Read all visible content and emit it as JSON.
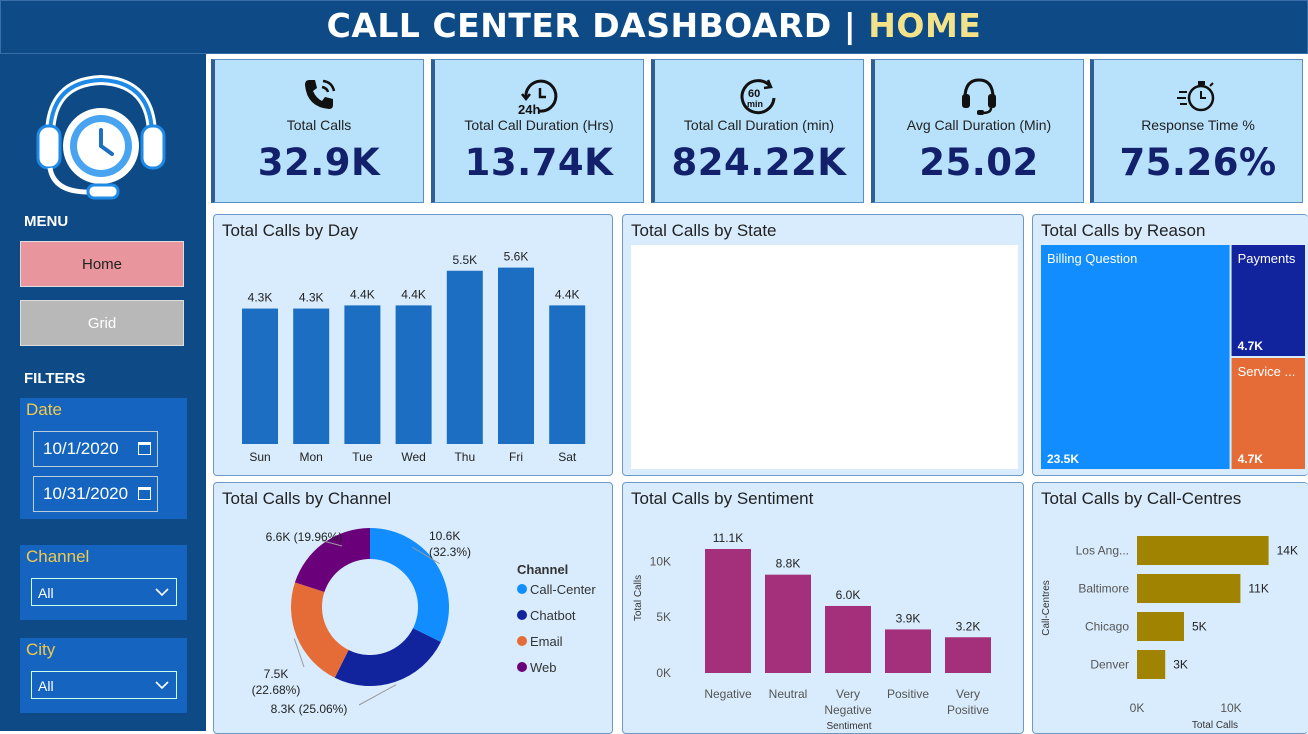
{
  "header": {
    "title": "CALL CENTER DASHBOARD | ",
    "page": "HOME"
  },
  "sidebar": {
    "logo_icon": "headset-clock-icon",
    "menu_label": "MENU",
    "nav": {
      "home": "Home",
      "grid": "Grid"
    },
    "filters_label": "FILTERS",
    "date": {
      "label": "Date",
      "start": "10/1/2020",
      "end": "10/31/2020"
    },
    "channel": {
      "label": "Channel",
      "value": "All"
    },
    "city": {
      "label": "City",
      "value": "All"
    }
  },
  "kpis": [
    {
      "icon": "phone-icon",
      "label": "Total Calls",
      "value": "32.9K"
    },
    {
      "icon": "clock-24h-icon",
      "label": "Total Call Duration (Hrs)",
      "value": "13.74K"
    },
    {
      "icon": "timer-60min-icon",
      "label": "Total Call Duration (min)",
      "value": "824.22K"
    },
    {
      "icon": "headset-icon",
      "label": "Avg Call Duration (Min)",
      "value": "25.02"
    },
    {
      "icon": "stopwatch-icon",
      "label": "Response Time %",
      "value": "75.26%"
    }
  ],
  "colors": {
    "bar_blue": "#1b6ec2",
    "donut_callcenter": "#118dff",
    "donut_chatbot": "#12239e",
    "donut_email": "#e66c37",
    "donut_web": "#6b007b",
    "sentiment": "#a4307b",
    "callcentre": "#a08300"
  },
  "chart_data": [
    {
      "id": "day",
      "type": "bar",
      "title": "Total Calls by Day",
      "categories": [
        "Sun",
        "Mon",
        "Tue",
        "Wed",
        "Thu",
        "Fri",
        "Sat"
      ],
      "values": [
        4.3,
        4.3,
        4.4,
        4.4,
        5.5,
        5.6,
        4.4
      ],
      "labels": [
        "4.3K",
        "4.3K",
        "4.4K",
        "4.4K",
        "5.5K",
        "5.6K",
        "4.4K"
      ],
      "ylim": [
        0,
        6
      ]
    },
    {
      "id": "state",
      "type": "map",
      "title": "Total Calls by State"
    },
    {
      "id": "reason",
      "type": "treemap",
      "title": "Total Calls by Reason",
      "categories": [
        "Billing Question",
        "Payments",
        "Service ..."
      ],
      "values": [
        23.5,
        4.7,
        4.7
      ],
      "labels": [
        "23.5K",
        "4.7K",
        "4.7K"
      ]
    },
    {
      "id": "channel",
      "type": "pie",
      "title": "Total Calls by Channel",
      "legend_title": "Channel",
      "categories": [
        "Call-Center",
        "Chatbot",
        "Email",
        "Web"
      ],
      "values": [
        32.3,
        25.06,
        22.68,
        19.96
      ],
      "labels": [
        [
          "10.6K",
          "(32.3%)"
        ],
        [
          "8.3K (25.06%)"
        ],
        [
          "7.5K",
          "(22.68%)"
        ],
        [
          "6.6K (19.96%)"
        ]
      ]
    },
    {
      "id": "sentiment",
      "type": "bar",
      "title": "Total Calls by Sentiment",
      "categories": [
        [
          "Negative"
        ],
        [
          "Neutral"
        ],
        [
          "Very",
          "Negative"
        ],
        [
          "Positive"
        ],
        [
          "Very",
          "Positive"
        ]
      ],
      "values": [
        11.1,
        8.8,
        6.0,
        3.9,
        3.2
      ],
      "labels": [
        "11.1K",
        "8.8K",
        "6.0K",
        "3.9K",
        "3.2K"
      ],
      "xlabel": "Sentiment",
      "ylabel": "Total Calls",
      "ylim": [
        0,
        12
      ],
      "yticks": [
        "0K",
        "5K",
        "10K"
      ]
    },
    {
      "id": "centres",
      "type": "bar",
      "orientation": "horizontal",
      "title": "Total Calls by Call-Centres",
      "categories": [
        "Los Ang...",
        "Baltimore",
        "Chicago",
        "Denver"
      ],
      "values": [
        14,
        11,
        5,
        3
      ],
      "labels": [
        "14K",
        "11K",
        "5K",
        "3K"
      ],
      "xlabel": "Total Calls",
      "ylabel": "Call-Centres",
      "xlim": [
        0,
        20
      ],
      "xticks": [
        "0K",
        "10K"
      ]
    }
  ]
}
